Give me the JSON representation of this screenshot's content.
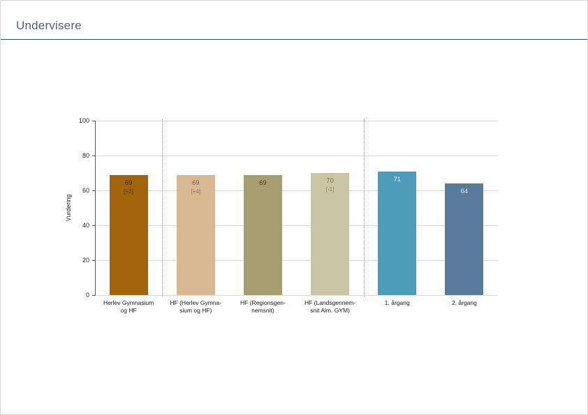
{
  "header": {
    "title": "Undervisere"
  },
  "chart_data": {
    "type": "bar",
    "title": "",
    "xlabel": "",
    "ylabel": "Vurdering",
    "ylim": [
      0,
      100
    ],
    "yticks": [
      0,
      20,
      40,
      60,
      80,
      100
    ],
    "grid": true,
    "legend": "none",
    "separator_positions_after_slot": [
      1,
      4
    ],
    "categories": [
      "Herlev Gymnasium og HF",
      "HF (Herlev Gymnasium og HF)",
      "HF (Regionsgennemsnit)",
      "HF (Landsgennemsnit Alm. GYM)",
      "1. årgang",
      "2. årgang"
    ],
    "values": [
      69,
      69,
      69,
      70,
      71,
      64
    ],
    "bars": [
      {
        "category_lines": [
          "Herlev Gymnasium",
          "og HF"
        ],
        "value": "69",
        "annotation": "[+2]",
        "color": "#a3630b",
        "text_color": "#332b1c"
      },
      {
        "category_lines": [
          "HF (Herlev Gymna-",
          "sium og HF)"
        ],
        "value": "69",
        "annotation": "[+4]",
        "color": "#d8b791",
        "text_color": "#6f675a"
      },
      {
        "category_lines": [
          "HF (Regionsgen-",
          "nemsnit)"
        ],
        "value": "69",
        "annotation": "",
        "color": "#a79e70",
        "text_color": "#423f2c"
      },
      {
        "category_lines": [
          "HF (Landsgennem-",
          "snit Alm. GYM)"
        ],
        "value": "70",
        "annotation": "[-1]",
        "color": "#ccc5a3",
        "text_color": "#6e6a54"
      },
      {
        "category_lines": [
          "1. årgang"
        ],
        "value": "71",
        "annotation": "",
        "color": "#4d9cba",
        "text_color": "#eef4f7"
      },
      {
        "category_lines": [
          "2. årgang"
        ],
        "value": "64",
        "annotation": "",
        "color": "#587a9c",
        "text_color": "#e9eef3"
      }
    ],
    "axis_color": "#555555",
    "gridline_color": "#d9d9d9",
    "separator_color": "#9a9a9a",
    "tick_label_color": "#1f1f1f",
    "category_label_color": "#161616"
  }
}
